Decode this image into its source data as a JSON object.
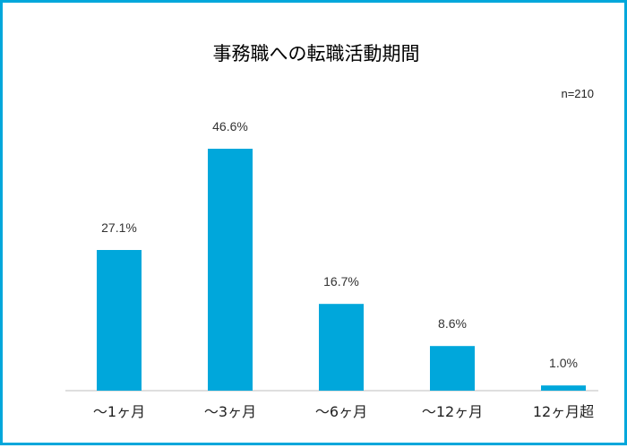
{
  "chart_data": {
    "type": "bar",
    "title": "事務職への転職活動期間",
    "note": "n=210",
    "categories": [
      "〜1ヶ月",
      "〜3ヶ月",
      "〜6ヶ月",
      "〜12ヶ月",
      "12ヶ月超"
    ],
    "values": [
      27.1,
      46.6,
      16.7,
      8.6,
      1.0
    ],
    "value_labels": [
      "27.1%",
      "46.6%",
      "16.7%",
      "8.6%",
      "1.0%"
    ],
    "xlabel": "",
    "ylabel": "",
    "ylim": [
      0,
      50
    ],
    "grid": false,
    "legend": "none",
    "bar_color": "#00a7db",
    "frame_color": "#00a7db"
  }
}
